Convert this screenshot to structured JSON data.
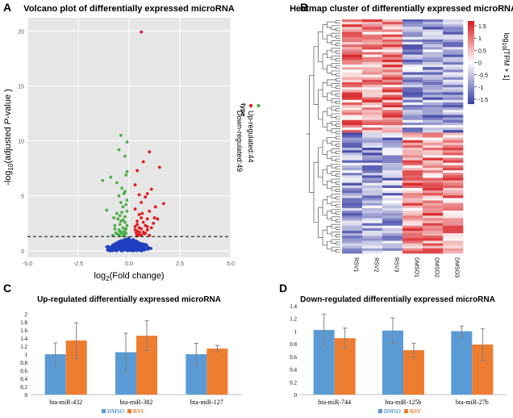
{
  "colors": {
    "up": "#e41a1c",
    "down": "#4daf4a",
    "ns": "#1f3fbf",
    "panel_bg": "#e6e6e6",
    "grid": "#ffffff",
    "dmso": "#5b9bd5",
    "rsv": "#ed7d31",
    "err": "#808080",
    "heat_low": "#3a3fa3",
    "heat_mid": "#ffffff",
    "heat_high": "#d7191c"
  },
  "panel_labels": [
    "A",
    "B",
    "C",
    "D"
  ],
  "chart_data": [
    {
      "type": "scatter",
      "panel": "A",
      "title": "Volcano plot of differentially expressed microRNA",
      "xlabel": "log2(Fold change)",
      "xlabel_main": "log",
      "xlabel_sub": "2",
      "xlabel_rest": "(Fold change)",
      "ylabel": "-log10(adjusted P-value )",
      "ylabel_parts": [
        "-log",
        "10",
        "(adjusted ",
        "P",
        "-value )"
      ],
      "xlim": [
        -5,
        5
      ],
      "ylim": [
        -0.6,
        21.2
      ],
      "xticks": [
        -5,
        -2.5,
        0,
        2.5,
        5
      ],
      "xtick_labels": [
        "-5.0",
        "-2.5",
        "0.0",
        "2.5",
        "5.0"
      ],
      "yticks": [
        0,
        5,
        10,
        15,
        20
      ],
      "ytick_labels": [
        "0",
        "5",
        "10",
        "15",
        "20"
      ],
      "threshold": 1.3,
      "legend_title": "type",
      "legend": [
        {
          "label": "Up-regulated:44",
          "group": "up"
        },
        {
          "label": "Down-regulated:49",
          "group": "down"
        }
      ],
      "up": [
        [
          0.6,
          19.9
        ],
        [
          1.0,
          9.0
        ],
        [
          0.7,
          8.1
        ],
        [
          1.5,
          7.6
        ],
        [
          0.4,
          7.3
        ],
        [
          0.3,
          6.0
        ],
        [
          1.1,
          5.6
        ],
        [
          0.9,
          5.2
        ],
        [
          0.8,
          4.9
        ],
        [
          1.7,
          4.3
        ],
        [
          1.3,
          4.0
        ],
        [
          1.0,
          3.6
        ],
        [
          0.5,
          3.3
        ],
        [
          0.6,
          3.0
        ],
        [
          0.9,
          2.9
        ],
        [
          0.4,
          2.7
        ],
        [
          0.7,
          2.6
        ],
        [
          1.2,
          2.5
        ],
        [
          0.8,
          2.3
        ],
        [
          0.3,
          2.2
        ],
        [
          0.5,
          2.1
        ],
        [
          0.6,
          2.0
        ],
        [
          0.9,
          1.9
        ],
        [
          0.4,
          1.8
        ],
        [
          0.7,
          1.7
        ],
        [
          0.35,
          1.6
        ],
        [
          0.55,
          1.5
        ],
        [
          0.45,
          1.45
        ],
        [
          1.4,
          2.9
        ],
        [
          1.1,
          2.1
        ],
        [
          0.3,
          3.8
        ],
        [
          0.6,
          4.4
        ],
        [
          0.5,
          5.1
        ],
        [
          0.4,
          2.4
        ],
        [
          0.8,
          1.6
        ],
        [
          1.0,
          1.4
        ],
        [
          0.3,
          1.9
        ],
        [
          0.65,
          3.4
        ],
        [
          1.25,
          3.0
        ],
        [
          0.9,
          2.2
        ],
        [
          0.5,
          1.7
        ],
        [
          0.75,
          1.55
        ],
        [
          0.4,
          1.35
        ],
        [
          0.6,
          1.4
        ]
      ],
      "down": [
        [
          -0.4,
          10.5
        ],
        [
          -0.1,
          9.9
        ],
        [
          -0.5,
          9.2
        ],
        [
          -0.2,
          8.6
        ],
        [
          -0.1,
          7.2
        ],
        [
          -0.9,
          6.7
        ],
        [
          -0.6,
          6.2
        ],
        [
          -1.3,
          6.4
        ],
        [
          -0.2,
          5.4
        ],
        [
          -0.5,
          5.0
        ],
        [
          -0.1,
          4.6
        ],
        [
          -0.3,
          4.0
        ],
        [
          -1.1,
          3.7
        ],
        [
          -0.6,
          3.4
        ],
        [
          -0.2,
          3.1
        ],
        [
          -0.4,
          2.7
        ],
        [
          -0.7,
          2.3
        ],
        [
          -0.3,
          2.1
        ],
        [
          -0.5,
          1.9
        ],
        [
          -0.2,
          1.7
        ],
        [
          -0.4,
          1.6
        ],
        [
          -0.6,
          1.55
        ],
        [
          -0.3,
          1.5
        ],
        [
          -0.8,
          1.4
        ],
        [
          -0.25,
          1.45
        ],
        [
          -0.45,
          2.4
        ],
        [
          -0.15,
          2.0
        ],
        [
          -0.35,
          3.5
        ],
        [
          -0.55,
          2.9
        ],
        [
          -0.15,
          6.9
        ],
        [
          -0.35,
          5.7
        ],
        [
          -0.75,
          3.0
        ],
        [
          -0.15,
          4.2
        ],
        [
          -0.45,
          1.8
        ],
        [
          -0.2,
          2.6
        ],
        [
          -0.65,
          1.65
        ],
        [
          -0.3,
          1.35
        ],
        [
          -0.5,
          1.4
        ],
        [
          -0.1,
          3.6
        ],
        [
          -0.25,
          5.2
        ],
        [
          -0.4,
          4.4
        ],
        [
          -0.7,
          2.0
        ],
        [
          -0.2,
          1.9
        ],
        [
          -0.1,
          2.3
        ],
        [
          -0.55,
          1.5
        ],
        [
          -0.3,
          2.8
        ],
        [
          -0.15,
          1.6
        ],
        [
          -0.45,
          3.2
        ],
        [
          -0.35,
          1.7
        ]
      ]
    },
    {
      "type": "heatmap",
      "panel": "B",
      "title": "Heatmap cluster of differentially expressed microRNA",
      "columns": [
        "RSV1",
        "RSV2",
        "RSV3",
        "DMSO1",
        "DMSO2",
        "DMSO3"
      ],
      "n_rows": 93,
      "color_range": [
        -1.7,
        1.7
      ],
      "colorbar_ticks": [
        "1.5",
        "1",
        "0.5",
        "0",
        "-0.5",
        "-1",
        "-1.5"
      ],
      "colorbar_values": [
        1.5,
        1,
        0.5,
        0,
        -0.5,
        -1,
        -1.5
      ],
      "colorbar_label": "log10(TPM + 1)",
      "colorbar_label_parts": [
        "log",
        "10",
        "[TPM + 1]"
      ]
    },
    {
      "type": "bar",
      "panel": "C",
      "title": "Up-regulated differentially expressed microRNA",
      "categories": [
        "bta-miR-432",
        "bta-miR-382",
        "bta-miR-127"
      ],
      "series": [
        {
          "name": "DMSO",
          "values": [
            1.0,
            1.05,
            1.0
          ],
          "errors": [
            0.28,
            0.47,
            0.27
          ]
        },
        {
          "name": "RSV",
          "values": [
            1.34,
            1.46,
            1.14
          ],
          "errors": [
            0.44,
            0.37,
            0.08
          ]
        }
      ],
      "ylim": [
        0,
        2
      ],
      "yticks": [
        0,
        0.2,
        0.4,
        0.6,
        0.8,
        1,
        1.2,
        1.4,
        1.6,
        1.8,
        2
      ],
      "ytick_labels": [
        "0",
        "0.2",
        "0.4",
        "0.6",
        "0.8",
        "1",
        "1.2",
        "1.4",
        "1.6",
        "1.8",
        "2"
      ]
    },
    {
      "type": "bar",
      "panel": "D",
      "title": "Down-regulated differentially expressed microRNA",
      "categories": [
        "bta-miR-744",
        "bta-miR-125b",
        "bta-miR-27b"
      ],
      "series": [
        {
          "name": "DMSO",
          "values": [
            1.02,
            1.01,
            1.0
          ],
          "errors": [
            0.25,
            0.2,
            0.08
          ]
        },
        {
          "name": "RSV",
          "values": [
            0.89,
            0.7,
            0.79
          ],
          "errors": [
            0.16,
            0.11,
            0.25
          ]
        }
      ],
      "ylim": [
        0,
        1.4
      ],
      "yticks": [
        0,
        0.2,
        0.4,
        0.6,
        0.8,
        1,
        1.2,
        1.4
      ],
      "ytick_labels": [
        "0",
        "0.2",
        "0.4",
        "0.6",
        "0.8",
        "1",
        "1.2",
        "1.4"
      ]
    }
  ]
}
